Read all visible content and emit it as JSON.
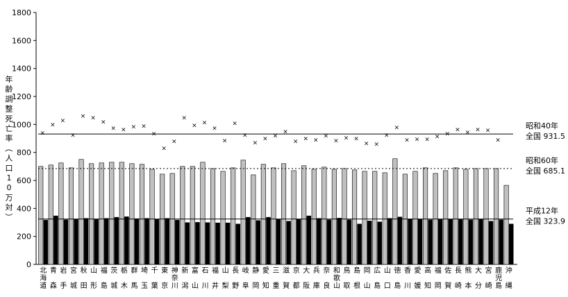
{
  "chart_data": {
    "type": "bar",
    "ylabel": "年齢調整死亡率（人口10万対）",
    "ylim": [
      0,
      1800
    ],
    "yticks": [
      0,
      200,
      400,
      600,
      800,
      1000,
      1200,
      1400,
      1600,
      1800
    ],
    "grid": false,
    "legend": "none",
    "categories": [
      "北海道",
      "青森",
      "岩手",
      "宮城",
      "秋田",
      "山形",
      "福島",
      "茨城",
      "栃木",
      "群馬",
      "埼玉",
      "千葉",
      "東京",
      "神奈川",
      "新潟",
      "富山",
      "石川",
      "福井",
      "山梨",
      "長野",
      "岐阜",
      "静岡",
      "愛知",
      "三重",
      "滋賀",
      "京都",
      "大阪",
      "兵庫",
      "奈良",
      "和歌山",
      "鳥取",
      "島根",
      "岡山",
      "広島",
      "山口",
      "徳島",
      "香川",
      "愛媛",
      "高知",
      "福岡",
      "佐賀",
      "長崎",
      "熊本",
      "大分",
      "宮崎",
      "鹿児島",
      "沖縄"
    ],
    "series": [
      {
        "mark": "x-marker",
        "color": "#000000",
        "values": [
          940,
          1000,
          1030,
          925,
          1060,
          1050,
          1020,
          975,
          965,
          985,
          990,
          935,
          830,
          880,
          1050,
          995,
          1015,
          975,
          885,
          1010,
          925,
          870,
          900,
          920,
          950,
          880,
          900,
          890,
          920,
          885,
          905,
          900,
          865,
          860,
          925,
          980,
          890,
          895,
          895,
          915,
          935,
          965,
          945,
          965,
          960,
          890,
          null
        ]
      },
      {
        "mark": "gray-bar",
        "color": "#c0c0c0",
        "values": [
          700,
          710,
          725,
          690,
          750,
          720,
          725,
          730,
          730,
          720,
          715,
          680,
          645,
          650,
          700,
          700,
          730,
          685,
          665,
          690,
          745,
          640,
          715,
          690,
          720,
          670,
          705,
          680,
          695,
          680,
          685,
          675,
          665,
          665,
          655,
          755,
          645,
          665,
          690,
          650,
          670,
          690,
          680,
          685,
          685,
          685,
          565
        ]
      },
      {
        "mark": "black-bar",
        "color": "#000000",
        "values": [
          318,
          348,
          320,
          322,
          330,
          322,
          330,
          338,
          342,
          328,
          330,
          322,
          330,
          318,
          300,
          302,
          300,
          298,
          298,
          290,
          338,
          315,
          338,
          322,
          310,
          322,
          348,
          330,
          320,
          332,
          320,
          290,
          312,
          305,
          330,
          340,
          326,
          325,
          320,
          322,
          322,
          322,
          320,
          325,
          310,
          320,
          290
        ]
      }
    ],
    "reference_lines": [
      {
        "era": "昭和40年",
        "label": "全国 931.5",
        "value": 931.5,
        "style": "solid"
      },
      {
        "era": "昭和60年",
        "label": "全国 685.1",
        "value": 685.1,
        "style": "dotted"
      },
      {
        "era": "平成12年",
        "label": "全国 323.9",
        "value": 323.9,
        "style": "solid"
      }
    ]
  }
}
